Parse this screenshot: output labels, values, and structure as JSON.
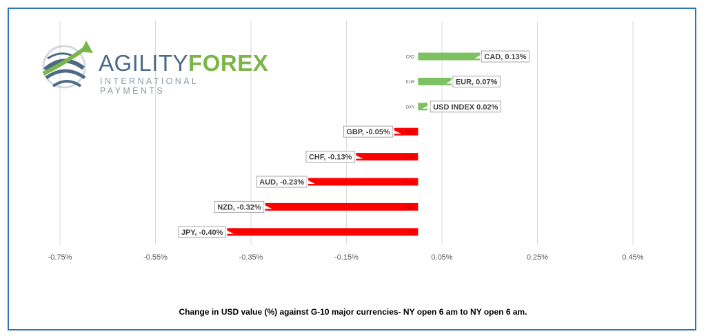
{
  "logo": {
    "word_part1": "AGILITY",
    "word_part2": "FOREX",
    "tagline": "INTERNATIONAL PAYMENTS",
    "colors": {
      "dark": "#4d6a85",
      "green": "#7ab648",
      "gray": "#8a9aa8"
    }
  },
  "caption": "Change in  USD value (%)  against  G-10 major currencies- NY open 6 am to NY open 6 am.",
  "chart_data": {
    "type": "bar",
    "orientation": "horizontal",
    "xlim": [
      -0.75,
      0.55
    ],
    "x_ticks": [
      -0.75,
      -0.55,
      -0.35,
      -0.15,
      0.05,
      0.25,
      0.45
    ],
    "x_tick_labels": [
      "-0.75%",
      "-0.55%",
      "-0.35%",
      "-0.15%",
      "0.05%",
      "0.25%",
      "0.45%"
    ],
    "grid": "vertical",
    "positive_color": "#7cc262",
    "negative_color": "#ff0000",
    "bars": [
      {
        "code": "CAD",
        "label": "CAD, 0.13%",
        "value": 0.13
      },
      {
        "code": "EUR",
        "label": "EUR, 0.07%",
        "value": 0.07
      },
      {
        "code": "DXY",
        "label": "USD INDEX 0.02%",
        "value": 0.02
      },
      {
        "code": "GBP",
        "label": "GBP, -0.05%",
        "value": -0.05
      },
      {
        "code": "CHF",
        "label": "CHF, -0.13%",
        "value": -0.13
      },
      {
        "code": "AUD",
        "label": "AUD, -0.23%",
        "value": -0.23
      },
      {
        "code": "NZD",
        "label": "NZD, -0.32%",
        "value": -0.32
      },
      {
        "code": "JPY",
        "label": "JPY, -0.40%",
        "value": -0.4
      }
    ]
  }
}
